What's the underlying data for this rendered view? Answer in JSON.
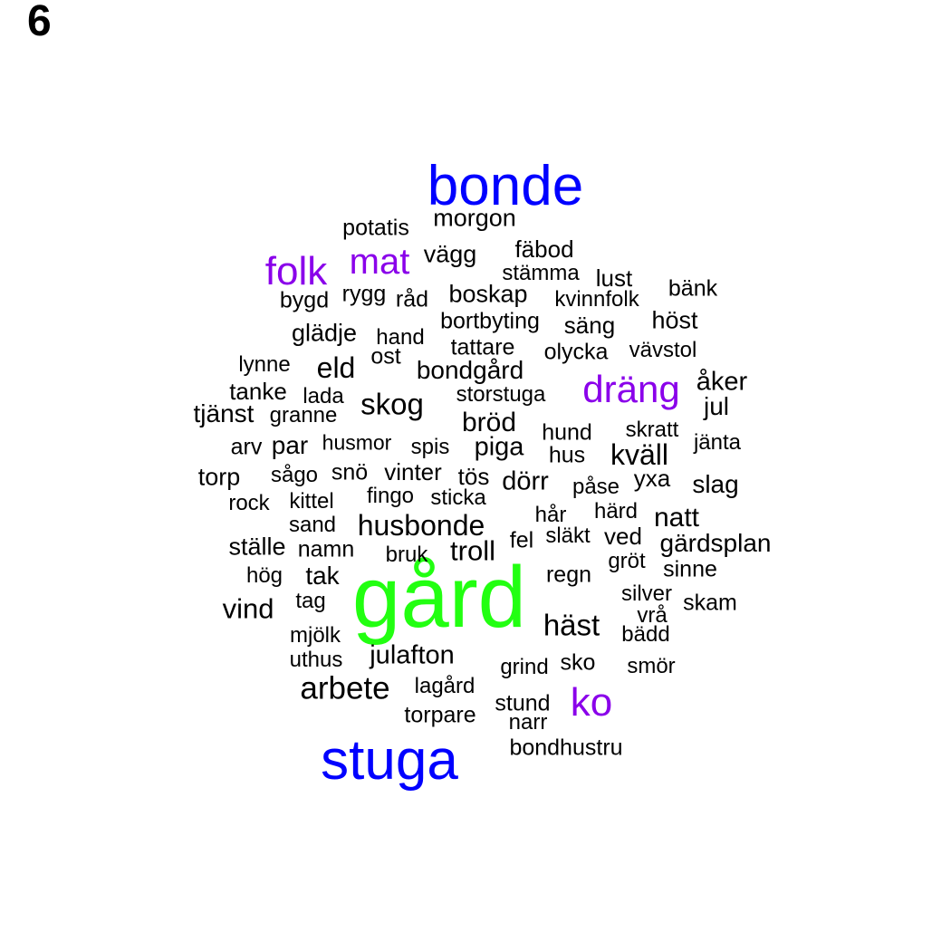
{
  "panel_label": "6",
  "colors": {
    "tier1": "#0000ff",
    "tier2": "#8a00ea",
    "top": "#22ff11",
    "rest": "#000000"
  },
  "words": [
    {
      "text": "gård",
      "tier": "top"
    },
    {
      "text": "bonde",
      "tier": "tier1"
    },
    {
      "text": "stuga",
      "tier": "tier1"
    },
    {
      "text": "folk",
      "tier": "tier2"
    },
    {
      "text": "mat",
      "tier": "tier2"
    },
    {
      "text": "dräng",
      "tier": "tier2"
    },
    {
      "text": "ko",
      "tier": "tier2"
    },
    {
      "text": "potatis",
      "tier": "rest"
    },
    {
      "text": "morgon",
      "tier": "rest"
    },
    {
      "text": "vägg",
      "tier": "rest"
    },
    {
      "text": "fäbod",
      "tier": "rest"
    },
    {
      "text": "stämma",
      "tier": "rest"
    },
    {
      "text": "lust",
      "tier": "rest"
    },
    {
      "text": "bänk",
      "tier": "rest"
    },
    {
      "text": "bygd",
      "tier": "rest"
    },
    {
      "text": "rygg",
      "tier": "rest"
    },
    {
      "text": "råd",
      "tier": "rest"
    },
    {
      "text": "boskap",
      "tier": "rest"
    },
    {
      "text": "kvinnfolk",
      "tier": "rest"
    },
    {
      "text": "höst",
      "tier": "rest"
    },
    {
      "text": "glädje",
      "tier": "rest"
    },
    {
      "text": "bortbyting",
      "tier": "rest"
    },
    {
      "text": "säng",
      "tier": "rest"
    },
    {
      "text": "hand",
      "tier": "rest"
    },
    {
      "text": "tattare",
      "tier": "rest"
    },
    {
      "text": "olycka",
      "tier": "rest"
    },
    {
      "text": "vävstol",
      "tier": "rest"
    },
    {
      "text": "lynne",
      "tier": "rest"
    },
    {
      "text": "ost",
      "tier": "rest"
    },
    {
      "text": "eld",
      "tier": "rest"
    },
    {
      "text": "bondgård",
      "tier": "rest"
    },
    {
      "text": "åker",
      "tier": "rest"
    },
    {
      "text": "tanke",
      "tier": "rest"
    },
    {
      "text": "lada",
      "tier": "rest"
    },
    {
      "text": "storstuga",
      "tier": "rest"
    },
    {
      "text": "jul",
      "tier": "rest"
    },
    {
      "text": "tjänst",
      "tier": "rest"
    },
    {
      "text": "granne",
      "tier": "rest"
    },
    {
      "text": "skog",
      "tier": "rest"
    },
    {
      "text": "bröd",
      "tier": "rest"
    },
    {
      "text": "hund",
      "tier": "rest"
    },
    {
      "text": "skratt",
      "tier": "rest"
    },
    {
      "text": "arv",
      "tier": "rest"
    },
    {
      "text": "par",
      "tier": "rest"
    },
    {
      "text": "husmor",
      "tier": "rest"
    },
    {
      "text": "spis",
      "tier": "rest"
    },
    {
      "text": "piga",
      "tier": "rest"
    },
    {
      "text": "hus",
      "tier": "rest"
    },
    {
      "text": "kväll",
      "tier": "rest"
    },
    {
      "text": "jänta",
      "tier": "rest"
    },
    {
      "text": "torp",
      "tier": "rest"
    },
    {
      "text": "sågo",
      "tier": "rest"
    },
    {
      "text": "snö",
      "tier": "rest"
    },
    {
      "text": "vinter",
      "tier": "rest"
    },
    {
      "text": "tös",
      "tier": "rest"
    },
    {
      "text": "dörr",
      "tier": "rest"
    },
    {
      "text": "påse",
      "tier": "rest"
    },
    {
      "text": "yxa",
      "tier": "rest"
    },
    {
      "text": "slag",
      "tier": "rest"
    },
    {
      "text": "rock",
      "tier": "rest"
    },
    {
      "text": "kittel",
      "tier": "rest"
    },
    {
      "text": "fingo",
      "tier": "rest"
    },
    {
      "text": "sticka",
      "tier": "rest"
    },
    {
      "text": "hår",
      "tier": "rest"
    },
    {
      "text": "härd",
      "tier": "rest"
    },
    {
      "text": "natt",
      "tier": "rest"
    },
    {
      "text": "sand",
      "tier": "rest"
    },
    {
      "text": "husbonde",
      "tier": "rest"
    },
    {
      "text": "fel",
      "tier": "rest"
    },
    {
      "text": "släkt",
      "tier": "rest"
    },
    {
      "text": "ved",
      "tier": "rest"
    },
    {
      "text": "gärdsplan",
      "tier": "rest"
    },
    {
      "text": "ställe",
      "tier": "rest"
    },
    {
      "text": "namn",
      "tier": "rest"
    },
    {
      "text": "bruk",
      "tier": "rest"
    },
    {
      "text": "troll",
      "tier": "rest"
    },
    {
      "text": "gröt",
      "tier": "rest"
    },
    {
      "text": "sinne",
      "tier": "rest"
    },
    {
      "text": "hög",
      "tier": "rest"
    },
    {
      "text": "tak",
      "tier": "rest"
    },
    {
      "text": "regn",
      "tier": "rest"
    },
    {
      "text": "silver",
      "tier": "rest"
    },
    {
      "text": "skam",
      "tier": "rest"
    },
    {
      "text": "vind",
      "tier": "rest"
    },
    {
      "text": "tag",
      "tier": "rest"
    },
    {
      "text": "vrå",
      "tier": "rest"
    },
    {
      "text": "häst",
      "tier": "rest"
    },
    {
      "text": "mjölk",
      "tier": "rest"
    },
    {
      "text": "bädd",
      "tier": "rest"
    },
    {
      "text": "uthus",
      "tier": "rest"
    },
    {
      "text": "julafton",
      "tier": "rest"
    },
    {
      "text": "grind",
      "tier": "rest"
    },
    {
      "text": "sko",
      "tier": "rest"
    },
    {
      "text": "smör",
      "tier": "rest"
    },
    {
      "text": "arbete",
      "tier": "rest"
    },
    {
      "text": "lagård",
      "tier": "rest"
    },
    {
      "text": "stund",
      "tier": "rest"
    },
    {
      "text": "torpare",
      "tier": "rest"
    },
    {
      "text": "narr",
      "tier": "rest"
    },
    {
      "text": "bondhustru",
      "tier": "rest"
    }
  ]
}
